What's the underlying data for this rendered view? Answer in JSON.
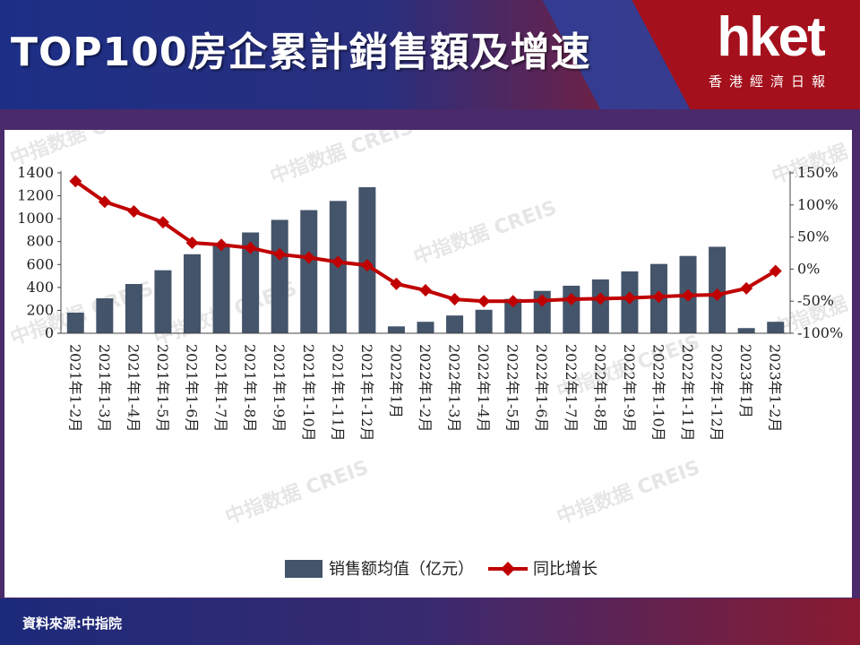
{
  "header": {
    "title": "TOP100房企累計銷售額及增速",
    "logo_text": "hket",
    "logo_subtitle": "香港經濟日報"
  },
  "footer": {
    "source": "資料來源:中指院"
  },
  "watermark_text": "中指数据 CREIS",
  "colors": {
    "bar": "#44546a",
    "line": "#c00000",
    "header_left": "#1c2f86",
    "header_right": "#b0121e"
  },
  "chart_data": {
    "type": "bar",
    "categories": [
      "2021年1-2月",
      "2021年1-3月",
      "2021年1-4月",
      "2021年1-5月",
      "2021年1-6月",
      "2021年1-7月",
      "2021年1-8月",
      "2021年1-9月",
      "2021年1-10月",
      "2021年1-11月",
      "2021年1-12月",
      "2022年1月",
      "2022年1-2月",
      "2022年1-3月",
      "2022年1-4月",
      "2022年1-5月",
      "2022年1-6月",
      "2022年1-7月",
      "2022年1-8月",
      "2022年1-9月",
      "2022年1-10月",
      "2022年1-11月",
      "2022年1-12月",
      "2023年1月",
      "2023年1-2月"
    ],
    "series": [
      {
        "name": "销售额均值（亿元）",
        "type": "bar",
        "axis": "left",
        "values": [
          180,
          305,
          430,
          550,
          690,
          780,
          880,
          990,
          1075,
          1155,
          1275,
          60,
          100,
          155,
          205,
          300,
          370,
          415,
          470,
          540,
          605,
          675,
          755,
          45,
          100
        ]
      },
      {
        "name": "同比增长",
        "type": "line",
        "axis": "right",
        "unit": "%",
        "values": [
          137,
          105,
          90,
          73,
          41,
          38,
          33,
          23,
          18,
          11,
          6,
          -23,
          -33,
          -47,
          -50,
          -50,
          -49,
          -47,
          -46,
          -45,
          -43,
          -41,
          -40,
          -30,
          -3
        ]
      }
    ],
    "y_left": {
      "ticks": [
        "0",
        "200",
        "400",
        "600",
        "800",
        "1000",
        "1200",
        "1400"
      ],
      "min": 0,
      "max": 1400
    },
    "y_right": {
      "ticks": [
        "-100%",
        "-50%",
        "0%",
        "50%",
        "100%",
        "150%"
      ],
      "min": -100,
      "max": 150
    },
    "legend": [
      "销售额均值（亿元）",
      "同比增长"
    ],
    "legend_position": "bottom"
  }
}
